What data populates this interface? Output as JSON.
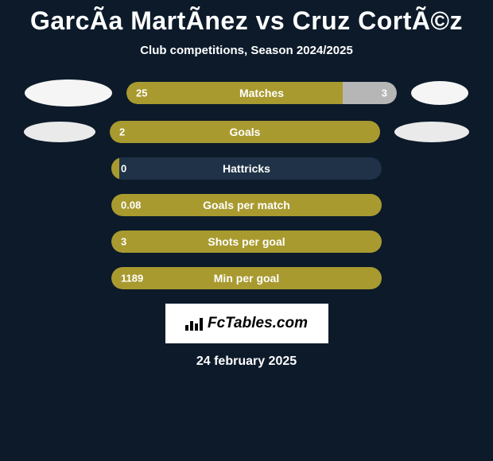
{
  "title": "GarcÃ­a MartÃ­nez vs Cruz CortÃ©z",
  "subtitle": "Club competitions, Season 2024/2025",
  "footer_date": "24 february 2025",
  "logo_text": "FcTables.com",
  "colors": {
    "background": "#0c1a2a",
    "bar_left": "#a89a2f",
    "bar_right": "#b6b6b6",
    "bar_empty": "#1f3247",
    "ellipse1_left": "#f5f5f5",
    "ellipse1_right": "#f5f5f5",
    "ellipse2_left": "#eaeaea",
    "ellipse2_right": "#eaeaea",
    "text": "#ffffff"
  },
  "stats": [
    {
      "label": "Matches",
      "left_val": "25",
      "right_val": "3",
      "left_pct": 80,
      "right_pct": 20,
      "ellipse": {
        "show": true,
        "lw": 110,
        "lh": 34,
        "rw": 72,
        "rh": 30,
        "lcolor": "#f5f5f5",
        "rcolor": "#f5f5f5"
      }
    },
    {
      "label": "Goals",
      "left_val": "2",
      "right_val": "",
      "left_pct": 100,
      "right_pct": 0,
      "ellipse": {
        "show": true,
        "lw": 90,
        "lh": 26,
        "rw": 94,
        "rh": 26,
        "lcolor": "#eaeaea",
        "rcolor": "#eaeaea"
      }
    },
    {
      "label": "Hattricks",
      "left_val": "0",
      "right_val": "",
      "left_pct": 3,
      "right_pct": 0,
      "ellipse": {
        "show": false
      }
    },
    {
      "label": "Goals per match",
      "left_val": "0.08",
      "right_val": "",
      "left_pct": 100,
      "right_pct": 0,
      "ellipse": {
        "show": false
      }
    },
    {
      "label": "Shots per goal",
      "left_val": "3",
      "right_val": "",
      "left_pct": 100,
      "right_pct": 0,
      "ellipse": {
        "show": false
      }
    },
    {
      "label": "Min per goal",
      "left_val": "1189",
      "right_val": "",
      "left_pct": 100,
      "right_pct": 0,
      "ellipse": {
        "show": false
      }
    }
  ]
}
